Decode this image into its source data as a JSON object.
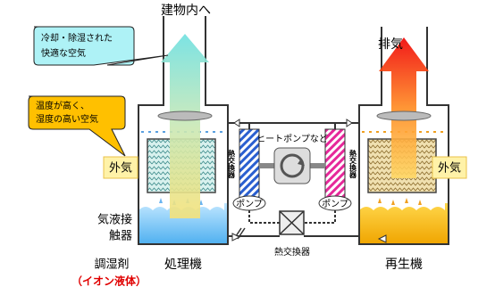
{
  "labels": {
    "to_building": "建物内へ",
    "exhaust": "排気",
    "cool_air_callout": [
      "冷却・除湿された",
      "快適な空気"
    ],
    "hot_air_callout": [
      "温度が高く、",
      "湿度の高い空気"
    ],
    "outside_air_left": "外気",
    "outside_air_right": "外気",
    "heat_pump": "ヒートポンプなど",
    "heat_exchanger_left": "熱交換器",
    "heat_exchanger_right": "熱交換器",
    "pump_left": "ポンプ",
    "pump_right": "ポンプ",
    "contactor": [
      "気液接",
      "触器"
    ],
    "desiccant": "調湿剤",
    "ionic_liquid": "（イオン液体）",
    "processor": "処理機",
    "heat_exchanger_bottom": "熱交換器",
    "regenerator": "再生機"
  }
}
